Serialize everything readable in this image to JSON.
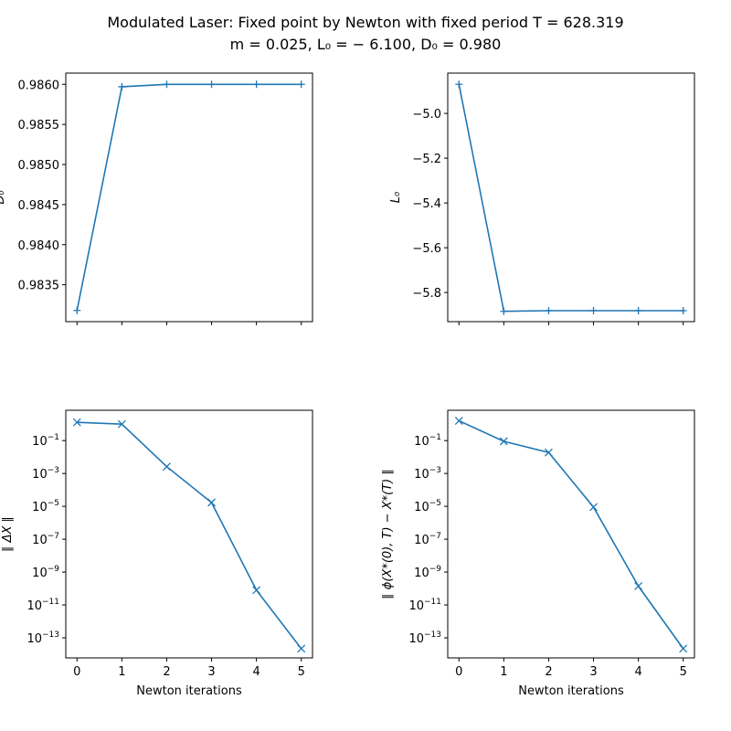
{
  "figure": {
    "title_line1": "Modulated Laser: Fixed point by Newton with fixed period T = 628.319",
    "title_line2": "m = 0.025, L₀ = − 6.100, D₀ = 0.980"
  },
  "chart_data": [
    {
      "type": "line",
      "title": "",
      "xlabel": "",
      "ylabel": "D₀",
      "yscale": "linear",
      "marker": "plus",
      "color": "#1f77b4",
      "x": [
        0,
        1,
        2,
        3,
        4,
        5
      ],
      "y": [
        0.98318,
        0.98597,
        0.986,
        0.986,
        0.986,
        0.986
      ],
      "xlim": [
        -0.25,
        5.25
      ],
      "ylim": [
        0.98304,
        0.98614
      ],
      "xticks": [
        0,
        1,
        2,
        3,
        4,
        5
      ],
      "xtick_labels": [
        "",
        "",
        "",
        "",
        "",
        ""
      ],
      "yticks": [
        0.9835,
        0.984,
        0.9845,
        0.985,
        0.9855,
        0.986
      ],
      "ytick_labels": [
        "0.9835",
        "0.9840",
        "0.9845",
        "0.9850",
        "0.9855",
        "0.9860"
      ],
      "grid": false
    },
    {
      "type": "line",
      "title": "",
      "xlabel": "",
      "ylabel": "L₀",
      "yscale": "linear",
      "marker": "plus",
      "color": "#1f77b4",
      "x": [
        0,
        1,
        2,
        3,
        4,
        5
      ],
      "y": [
        -4.87,
        -5.884,
        -5.881,
        -5.881,
        -5.881,
        -5.881
      ],
      "xlim": [
        -0.25,
        5.25
      ],
      "ylim": [
        -5.93,
        -4.82
      ],
      "xticks": [
        0,
        1,
        2,
        3,
        4,
        5
      ],
      "xtick_labels": [
        "",
        "",
        "",
        "",
        "",
        ""
      ],
      "yticks": [
        -5.8,
        -5.6,
        -5.4,
        -5.2,
        -5.0
      ],
      "ytick_labels": [
        "−5.8",
        "−5.6",
        "−5.4",
        "−5.2",
        "−5.0"
      ],
      "grid": false
    },
    {
      "type": "line",
      "title": "",
      "xlabel": "Newton iterations",
      "ylabel": "∥ ΔX ∥",
      "yscale": "log",
      "marker": "x",
      "color": "#1f77b4",
      "x": [
        0,
        1,
        2,
        3,
        4,
        5
      ],
      "y": [
        1.3,
        1.0,
        0.0026,
        1.7e-05,
        8e-11,
        2.2e-14
      ],
      "xlim": [
        -0.25,
        5.25
      ],
      "ylim": [
        6e-15,
        7
      ],
      "xticks": [
        0,
        1,
        2,
        3,
        4,
        5
      ],
      "xtick_labels": [
        "0",
        "1",
        "2",
        "3",
        "4",
        "5"
      ],
      "yticks": [
        1e-13,
        1e-11,
        1e-09,
        1e-07,
        1e-05,
        0.001,
        0.1
      ],
      "ytick_exponents": [
        "−13",
        "−11",
        "−9",
        "−7",
        "−5",
        "−3",
        "−1"
      ],
      "ytick_base": "10",
      "grid": false
    },
    {
      "type": "line",
      "title": "",
      "xlabel": "Newton iterations",
      "ylabel": "∥ ϕ(X*(0), T) − X*(T) ∥",
      "yscale": "log",
      "marker": "x",
      "color": "#1f77b4",
      "x": [
        0,
        1,
        2,
        3,
        4,
        5
      ],
      "y": [
        1.6,
        0.09,
        0.019,
        9e-06,
        1.4e-10,
        2.2e-14
      ],
      "xlim": [
        -0.25,
        5.25
      ],
      "ylim": [
        6e-15,
        7
      ],
      "xticks": [
        0,
        1,
        2,
        3,
        4,
        5
      ],
      "xtick_labels": [
        "0",
        "1",
        "2",
        "3",
        "4",
        "5"
      ],
      "yticks": [
        1e-13,
        1e-11,
        1e-09,
        1e-07,
        1e-05,
        0.001,
        0.1
      ],
      "ytick_exponents": [
        "−13",
        "−11",
        "−9",
        "−7",
        "−5",
        "−3",
        "−1"
      ],
      "ytick_base": "10",
      "grid": false
    }
  ]
}
